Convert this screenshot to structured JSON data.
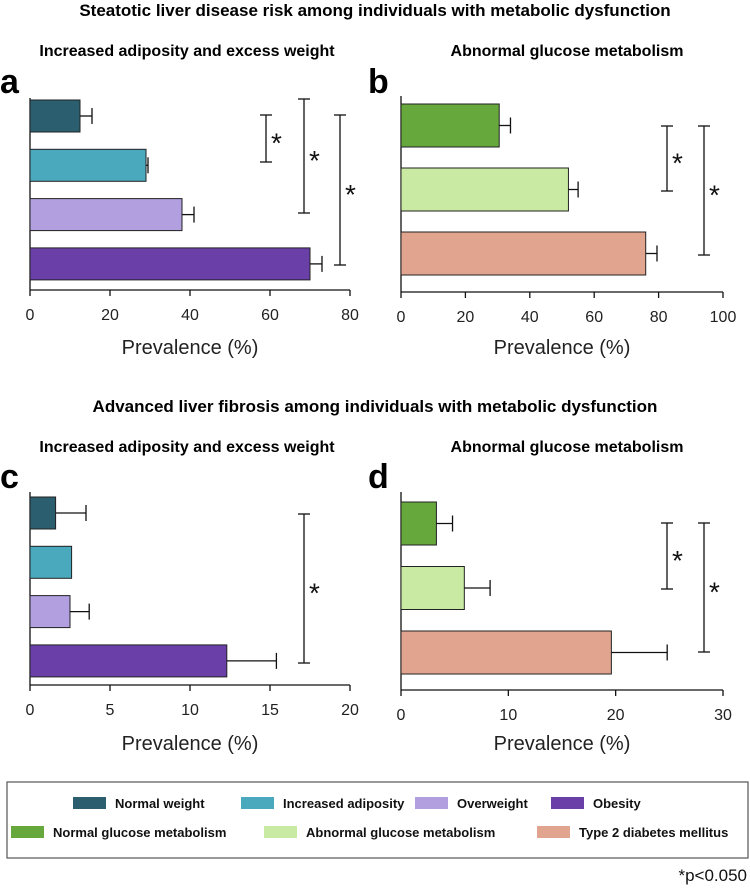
{
  "header_top": "Steatotic liver disease risk among individuals with metabolic dysfunction",
  "header_bottom": "Advanced liver fibrosis among individuals with metabolic dysfunction",
  "colors": {
    "normal_weight": "#2b5f70",
    "increased_adiposity": "#4aa9bd",
    "overweight": "#b19fdf",
    "obesity": "#6a40a8",
    "normal_glucose": "#66a83c",
    "abnormal_glucose": "#c9eaa3",
    "t2dm": "#e0a48f"
  },
  "chart_data": [
    {
      "panel": "a",
      "type": "bar",
      "orientation": "horizontal",
      "title": "Increased adiposity and excess weight",
      "xlabel": "Prevalence (%)",
      "xlim": [
        0,
        80
      ],
      "ticks": [
        0,
        20,
        40,
        60,
        80
      ],
      "tick_labels": [
        "0",
        "20",
        "40",
        "60",
        "80"
      ],
      "categories": [
        "Normal weight",
        "Increased adiposity",
        "Overweight",
        "Obesity"
      ],
      "color_keys": [
        "normal_weight",
        "increased_adiposity",
        "overweight",
        "obesity"
      ],
      "values": [
        12.5,
        29,
        38,
        70
      ],
      "errors": [
        3,
        0.5,
        3,
        3
      ],
      "significance": [
        {
          "from": 0,
          "to": 1,
          "label": "*"
        },
        {
          "from": 0,
          "to": 2,
          "label": "*"
        },
        {
          "from": 0,
          "to": 3,
          "label": "*"
        }
      ]
    },
    {
      "panel": "b",
      "type": "bar",
      "orientation": "horizontal",
      "title": "Abnormal glucose metabolism",
      "xlabel": "Prevalence (%)",
      "xlim": [
        0,
        100
      ],
      "ticks": [
        0,
        20,
        40,
        60,
        80,
        100
      ],
      "tick_labels": [
        "0",
        "20",
        "40",
        "60",
        "80",
        "100"
      ],
      "categories": [
        "Normal glucose metabolism",
        "Abnormal glucose metabolism",
        "Type 2 diabetes mellitus"
      ],
      "color_keys": [
        "normal_glucose",
        "abnormal_glucose",
        "t2dm"
      ],
      "values": [
        30.5,
        52,
        76
      ],
      "errors": [
        3.5,
        3,
        3.5
      ],
      "significance": [
        {
          "from": 0,
          "to": 1,
          "label": "*"
        },
        {
          "from": 0,
          "to": 2,
          "label": "*"
        }
      ]
    },
    {
      "panel": "c",
      "type": "bar",
      "orientation": "horizontal",
      "title": "Increased adiposity and excess weight",
      "xlabel": "Prevalence (%)",
      "xlim": [
        0,
        20
      ],
      "ticks": [
        0,
        5,
        10,
        15,
        20
      ],
      "tick_labels": [
        "0",
        "5",
        "10",
        "15",
        "20"
      ],
      "categories": [
        "Normal weight",
        "Increased adiposity",
        "Overweight",
        "Obesity"
      ],
      "color_keys": [
        "normal_weight",
        "increased_adiposity",
        "overweight",
        "obesity"
      ],
      "values": [
        1.6,
        2.6,
        2.5,
        12.3
      ],
      "errors": [
        1.9,
        0,
        1.2,
        3.1
      ],
      "significance": [
        {
          "from": 0,
          "to": 3,
          "label": "*"
        }
      ]
    },
    {
      "panel": "d",
      "type": "bar",
      "orientation": "horizontal",
      "title": "Abnormal glucose metabolism",
      "xlabel": "Prevalence (%)",
      "xlim": [
        0,
        30
      ],
      "ticks": [
        0,
        10,
        20,
        30
      ],
      "tick_labels": [
        "0",
        "10",
        "20",
        "30"
      ],
      "categories": [
        "Normal glucose metabolism",
        "Abnormal glucose metabolism",
        "Type 2 diabetes mellitus"
      ],
      "color_keys": [
        "normal_glucose",
        "abnormal_glucose",
        "t2dm"
      ],
      "values": [
        3.3,
        5.9,
        19.6
      ],
      "errors": [
        1.5,
        2.4,
        5.2
      ],
      "significance": [
        {
          "from": 0,
          "to": 1,
          "label": "*"
        },
        {
          "from": 0,
          "to": 2,
          "label": "*"
        }
      ]
    }
  ],
  "legend": [
    {
      "label": "Normal weight",
      "color_key": "normal_weight"
    },
    {
      "label": "Increased adiposity",
      "color_key": "increased_adiposity"
    },
    {
      "label": "Overweight",
      "color_key": "overweight"
    },
    {
      "label": "Obesity",
      "color_key": "obesity"
    },
    {
      "label": "Normal glucose metabolism",
      "color_key": "normal_glucose"
    },
    {
      "label": "Abnormal glucose metabolism",
      "color_key": "abnormal_glucose"
    },
    {
      "label": "Type 2 diabetes mellitus",
      "color_key": "t2dm"
    }
  ],
  "footnote": "*p<0.050"
}
